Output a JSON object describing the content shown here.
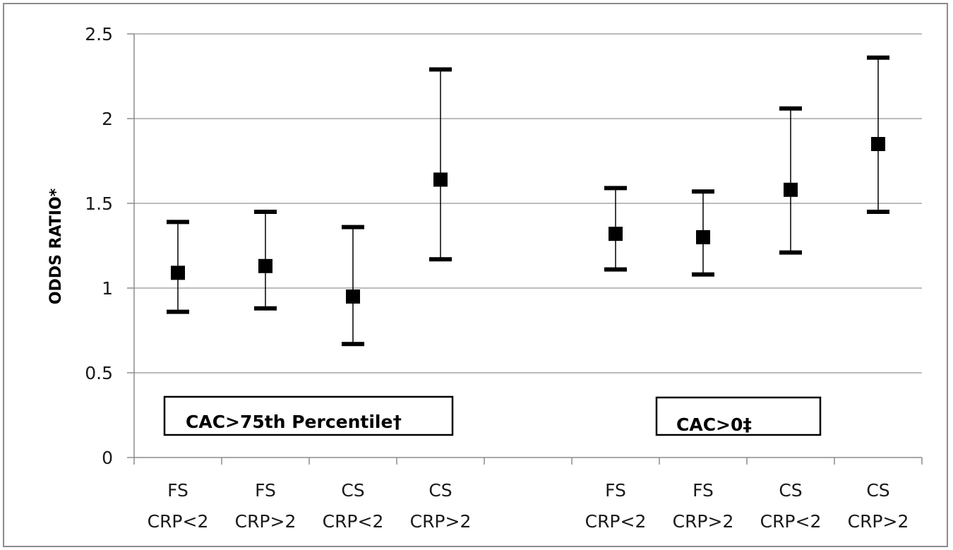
{
  "chart_data": {
    "type": "scatter",
    "title": "",
    "xlabel": "",
    "ylabel": "ODDS RATIO*",
    "ylim": [
      0,
      2.5
    ],
    "yticks": [
      0,
      0.5,
      1,
      1.5,
      2,
      2.5
    ],
    "ytick_labels": [
      "0",
      "0.5",
      "1",
      "1.5",
      "2",
      "2.5"
    ],
    "grid": true,
    "categories": [
      [
        "FS",
        "CRP<2"
      ],
      [
        "FS",
        "CRP>2"
      ],
      [
        "CS",
        "CRP<2"
      ],
      [
        "CS",
        "CRP>2"
      ],
      [
        "",
        ""
      ],
      [
        "FS",
        "CRP<2"
      ],
      [
        "FS",
        "CRP>2"
      ],
      [
        "CS",
        "CRP<2"
      ],
      [
        "CS",
        "CRP>2"
      ]
    ],
    "series": [
      {
        "group_label": "CAC>75th Percentile†",
        "points": [
          {
            "category_index": 0,
            "value": 1.09,
            "lower": 0.86,
            "upper": 1.39
          },
          {
            "category_index": 1,
            "value": 1.13,
            "lower": 0.88,
            "upper": 1.45
          },
          {
            "category_index": 2,
            "value": 0.95,
            "lower": 0.67,
            "upper": 1.36
          },
          {
            "category_index": 3,
            "value": 1.64,
            "lower": 1.17,
            "upper": 2.29
          }
        ]
      },
      {
        "group_label": "CAC>0‡",
        "points": [
          {
            "category_index": 5,
            "value": 1.32,
            "lower": 1.11,
            "upper": 1.59
          },
          {
            "category_index": 6,
            "value": 1.3,
            "lower": 1.08,
            "upper": 1.57
          },
          {
            "category_index": 7,
            "value": 1.58,
            "lower": 1.21,
            "upper": 2.06
          },
          {
            "category_index": 8,
            "value": 1.85,
            "lower": 1.45,
            "upper": 2.36
          }
        ]
      }
    ],
    "colors": {
      "marker": "#000000",
      "grid": "#a6a6a6",
      "axis": "#8c8c8c"
    }
  }
}
